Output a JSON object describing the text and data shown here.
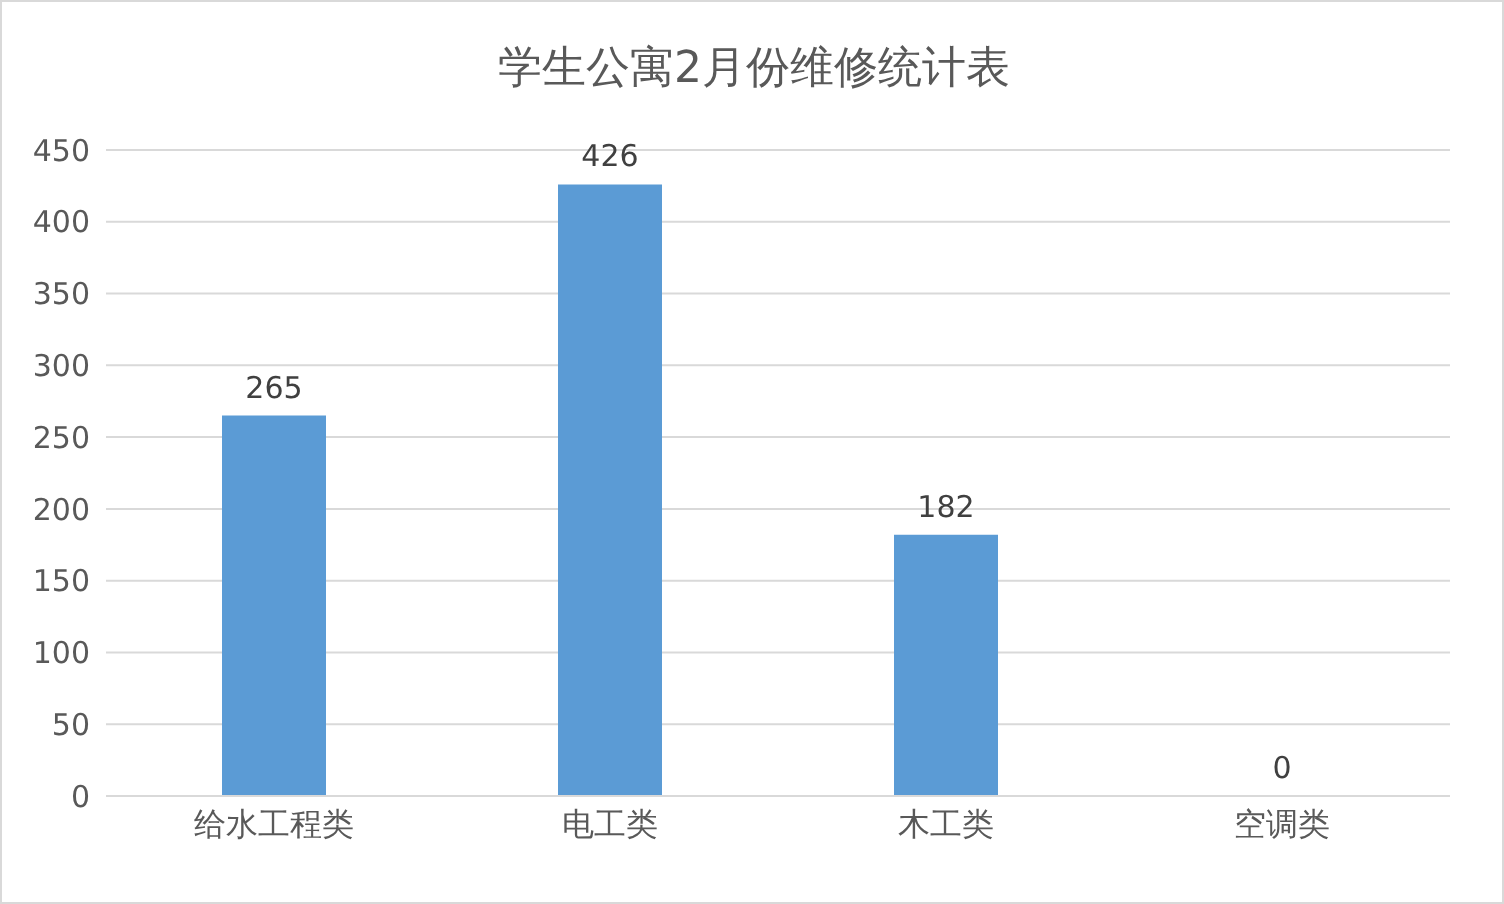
{
  "chart_data": {
    "type": "bar",
    "title": "学生公寓2月份维修统计表",
    "categories": [
      "给水工程类",
      "电工类",
      "木工类",
      "空调类"
    ],
    "values": [
      265,
      426,
      182,
      0
    ],
    "color": "#5b9bd5",
    "ylim": [
      0,
      450
    ],
    "yticks": [
      0,
      50,
      100,
      150,
      200,
      250,
      300,
      350,
      400,
      450
    ],
    "grid": "y",
    "data_labels": true
  }
}
